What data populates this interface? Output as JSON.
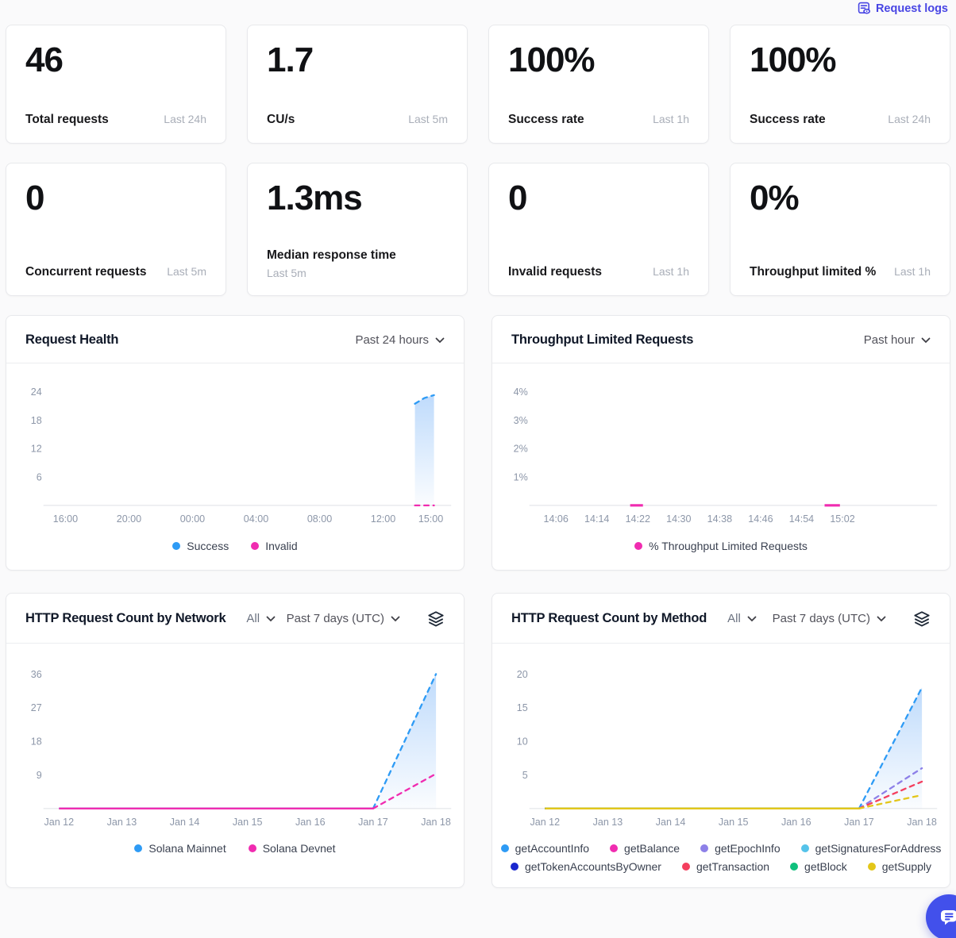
{
  "header": {
    "request_logs_label": "Request logs"
  },
  "icons": {
    "request_logs": "logs-eye-icon",
    "dropdown": "chevron-down-icon",
    "stack": "layers-icon",
    "chat": "chat-bubble-icon"
  },
  "accent": {
    "link": "#4845E4",
    "chat_button": "#4250EB"
  },
  "stats": [
    {
      "value": "46",
      "label": "Total requests",
      "period": "Last 24h"
    },
    {
      "value": "1.7",
      "label": "CU/s",
      "period": "Last 5m"
    },
    {
      "value": "100%",
      "label": "Success rate",
      "period": "Last 1h"
    },
    {
      "value": "100%",
      "label": "Success rate",
      "period": "Last 24h"
    },
    {
      "value": "0",
      "label": "Concurrent requests",
      "period": "Last 5m"
    },
    {
      "value": "1.3ms",
      "label": "Median response time",
      "period": "Last 5m"
    },
    {
      "value": "0",
      "label": "Invalid requests",
      "period": "Last 1h"
    },
    {
      "value": "0%",
      "label": "Throughput limited %",
      "period": "Last 1h"
    }
  ],
  "panels": [
    {
      "title": "Request Health",
      "range": "Past 24 hours"
    },
    {
      "title": "Throughput Limited Requests",
      "range": "Past hour"
    },
    {
      "title": "HTTP Request Count by Network",
      "filter": "All",
      "range": "Past 7 days (UTC)"
    },
    {
      "title": "HTTP Request Count by Method",
      "filter": "All",
      "range": "Past 7 days (UTC)"
    }
  ],
  "chart_data": [
    {
      "type": "line",
      "title": "Request Health",
      "time_range": "Past 24 hours",
      "legend_position": "bottom",
      "x_range": [
        0,
        24.8
      ],
      "x_ticks": [
        {
          "v": 1,
          "label": "16:00"
        },
        {
          "v": 5,
          "label": "20:00"
        },
        {
          "v": 9,
          "label": "00:00"
        },
        {
          "v": 13,
          "label": "04:00"
        },
        {
          "v": 17,
          "label": "08:00"
        },
        {
          "v": 21,
          "label": "12:00"
        },
        {
          "v": 24,
          "label": "15:00"
        }
      ],
      "y_ticks": [
        {
          "v": 6,
          "label": "6"
        },
        {
          "v": 12,
          "label": "12"
        },
        {
          "v": 18,
          "label": "18"
        },
        {
          "v": 24,
          "label": "24"
        }
      ],
      "series": [
        {
          "name": "Success",
          "color": "#2E9BF5",
          "segments": [
            {
              "dashed": true,
              "fill": true,
              "points": [
                [
                  23.0,
                  21.5
                ],
                [
                  23.6,
                  22.7
                ],
                [
                  24.2,
                  23.3
                ]
              ]
            }
          ]
        },
        {
          "name": "Invalid",
          "color": "#F02CB0",
          "segments": [
            {
              "dashed": true,
              "points": [
                [
                  23.0,
                  0
                ],
                [
                  23.6,
                  0
                ],
                [
                  24.2,
                  0
                ]
              ]
            }
          ]
        }
      ]
    },
    {
      "type": "line",
      "title": "Throughput Limited Requests",
      "time_range": "Past hour",
      "legend_position": "bottom",
      "x_range": [
        2,
        79
      ],
      "x_ticks": [
        {
          "v": 6,
          "label": "14:06"
        },
        {
          "v": 14,
          "label": "14:14"
        },
        {
          "v": 22,
          "label": "14:22"
        },
        {
          "v": 30,
          "label": "14:30"
        },
        {
          "v": 38,
          "label": "14:38"
        },
        {
          "v": 46,
          "label": "14:46"
        },
        {
          "v": 54,
          "label": "14:54"
        },
        {
          "v": 62,
          "label": "15:02"
        }
      ],
      "y_ticks": [
        {
          "v": 1,
          "label": "1%"
        },
        {
          "v": 2,
          "label": "2%"
        },
        {
          "v": 3,
          "label": "3%"
        },
        {
          "v": 4,
          "label": "4%"
        }
      ],
      "series": [
        {
          "name": "% Throughput Limited Requests",
          "color": "#F02CB0",
          "segments": [
            {
              "width": 3.2,
              "points": [
                [
                  20.5,
                  0
                ],
                [
                  23,
                  0
                ]
              ]
            },
            {
              "width": 3.2,
              "points": [
                [
                  58.5,
                  0
                ],
                [
                  61.5,
                  0
                ]
              ]
            }
          ]
        }
      ]
    },
    {
      "type": "line",
      "title": "HTTP Request Count by Network",
      "time_range": "Past 7 days (UTC)",
      "legend_position": "bottom",
      "x_range": [
        -0.15,
        6.12
      ],
      "x_ticks": [
        {
          "v": 0,
          "label": "Jan 12"
        },
        {
          "v": 1,
          "label": "Jan 13"
        },
        {
          "v": 2,
          "label": "Jan 14"
        },
        {
          "v": 3,
          "label": "Jan 15"
        },
        {
          "v": 4,
          "label": "Jan 16"
        },
        {
          "v": 5,
          "label": "Jan 17"
        },
        {
          "v": 6,
          "label": "Jan 18"
        }
      ],
      "y_ticks": [
        {
          "v": 9,
          "label": "9"
        },
        {
          "v": 18,
          "label": "18"
        },
        {
          "v": 27,
          "label": "27"
        },
        {
          "v": 36,
          "label": "36"
        }
      ],
      "series": [
        {
          "name": "Solana Mainnet",
          "color": "#2E9BF5",
          "segments": [
            {
              "points": [
                [
                  0,
                  0
                ],
                [
                  5,
                  0
                ]
              ]
            },
            {
              "dashed": true,
              "fill": true,
              "points": [
                [
                  5,
                  0
                ],
                [
                  6,
                  36
                ]
              ]
            }
          ]
        },
        {
          "name": "Solana Devnet",
          "color": "#F02CB0",
          "segments": [
            {
              "points": [
                [
                  0,
                  0
                ],
                [
                  5,
                  0
                ]
              ]
            },
            {
              "dashed": true,
              "points": [
                [
                  5,
                  0
                ],
                [
                  6,
                  9.3
                ]
              ]
            }
          ]
        }
      ]
    },
    {
      "type": "line",
      "title": "HTTP Request Count by Method",
      "time_range": "Past 7 days (UTC)",
      "legend_position": "bottom",
      "x_range": [
        -0.15,
        6.12
      ],
      "x_ticks": [
        {
          "v": 0,
          "label": "Jan 12"
        },
        {
          "v": 1,
          "label": "Jan 13"
        },
        {
          "v": 2,
          "label": "Jan 14"
        },
        {
          "v": 3,
          "label": "Jan 15"
        },
        {
          "v": 4,
          "label": "Jan 16"
        },
        {
          "v": 5,
          "label": "Jan 17"
        },
        {
          "v": 6,
          "label": "Jan 18"
        }
      ],
      "y_ticks": [
        {
          "v": 5,
          "label": "5"
        },
        {
          "v": 10,
          "label": "10"
        },
        {
          "v": 15,
          "label": "15"
        },
        {
          "v": 20,
          "label": "20"
        }
      ],
      "series": [
        {
          "name": "getAccountInfo",
          "color": "#2E9BF5",
          "segments": [
            {
              "points": [
                [
                  0,
                  0
                ],
                [
                  5,
                  0
                ]
              ]
            },
            {
              "dashed": true,
              "fill": true,
              "points": [
                [
                  5,
                  0
                ],
                [
                  6,
                  18
                ]
              ]
            }
          ]
        },
        {
          "name": "getBalance",
          "color": "#F02CB0",
          "segments": [
            {
              "points": [
                [
                  0,
                  0
                ],
                [
                  5,
                  0
                ]
              ]
            }
          ]
        },
        {
          "name": "getEpochInfo",
          "color": "#8D80E8",
          "segments": [
            {
              "points": [
                [
                  0,
                  0
                ],
                [
                  5,
                  0
                ]
              ]
            },
            {
              "dashed": true,
              "points": [
                [
                  5,
                  0
                ],
                [
                  6,
                  6
                ]
              ]
            }
          ]
        },
        {
          "name": "getSignaturesForAddress",
          "color": "#55C3EA",
          "segments": [
            {
              "points": [
                [
                  0,
                  0
                ],
                [
                  5,
                  0
                ]
              ]
            }
          ]
        },
        {
          "name": "getTokenAccountsByOwner",
          "color": "#1A27CE",
          "segments": [
            {
              "points": [
                [
                  0,
                  0
                ],
                [
                  5,
                  0
                ]
              ]
            }
          ]
        },
        {
          "name": "getTransaction",
          "color": "#F43F5E",
          "segments": [
            {
              "points": [
                [
                  0,
                  0
                ],
                [
                  5,
                  0
                ]
              ]
            },
            {
              "dashed": true,
              "points": [
                [
                  5,
                  0
                ],
                [
                  6,
                  4
                ]
              ]
            }
          ]
        },
        {
          "name": "getBlock",
          "color": "#0FC07D",
          "segments": [
            {
              "points": [
                [
                  0,
                  0
                ],
                [
                  5,
                  0
                ]
              ]
            }
          ]
        },
        {
          "name": "getSupply",
          "color": "#E3C619",
          "segments": [
            {
              "points": [
                [
                  0,
                  0
                ],
                [
                  5,
                  0
                ]
              ]
            },
            {
              "dashed": true,
              "points": [
                [
                  5,
                  0
                ],
                [
                  6,
                  2
                ]
              ]
            }
          ]
        }
      ]
    }
  ]
}
